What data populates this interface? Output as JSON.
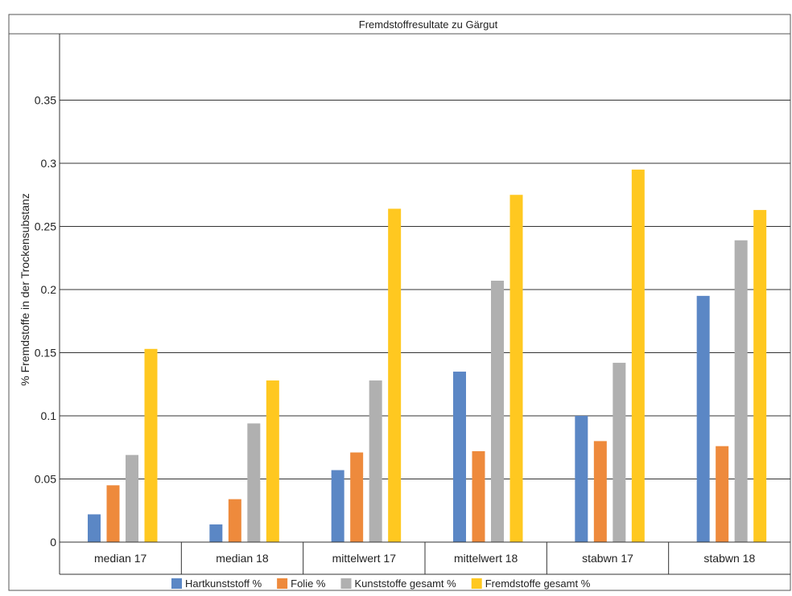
{
  "chart_data": {
    "type": "bar",
    "title": "Fremdstoffresultate zu Gärgut",
    "xlabel": "",
    "ylabel": "% Fremdstoffe in der Trockensubstanz",
    "ylim": [
      0,
      0.4
    ],
    "yticks": [
      "0",
      "0.05",
      "0.1",
      "0.15",
      "0.2",
      "0.25",
      "0.3",
      "0.35"
    ],
    "grid": true,
    "legend_position": "bottom",
    "categories": [
      "median 17",
      "median 18",
      "mittelwert 17",
      "mittelwert 18",
      "stabwn 17",
      "stabwn 18"
    ],
    "series": [
      {
        "name": "Hartkunststoff %",
        "color": "#5b87c5",
        "values": [
          0.022,
          0.014,
          0.057,
          0.135,
          0.1,
          0.195
        ]
      },
      {
        "name": "Folie %",
        "color": "#ee8a3c",
        "values": [
          0.045,
          0.034,
          0.071,
          0.072,
          0.08,
          0.076
        ]
      },
      {
        "name": "Kunststoffe gesamt %",
        "color": "#b0b0b0",
        "values": [
          0.069,
          0.094,
          0.128,
          0.207,
          0.142,
          0.239
        ]
      },
      {
        "name": "Fremdstoffe gesamt %",
        "color": "#ffc820",
        "values": [
          0.153,
          0.128,
          0.264,
          0.275,
          0.295,
          0.263
        ]
      }
    ]
  }
}
